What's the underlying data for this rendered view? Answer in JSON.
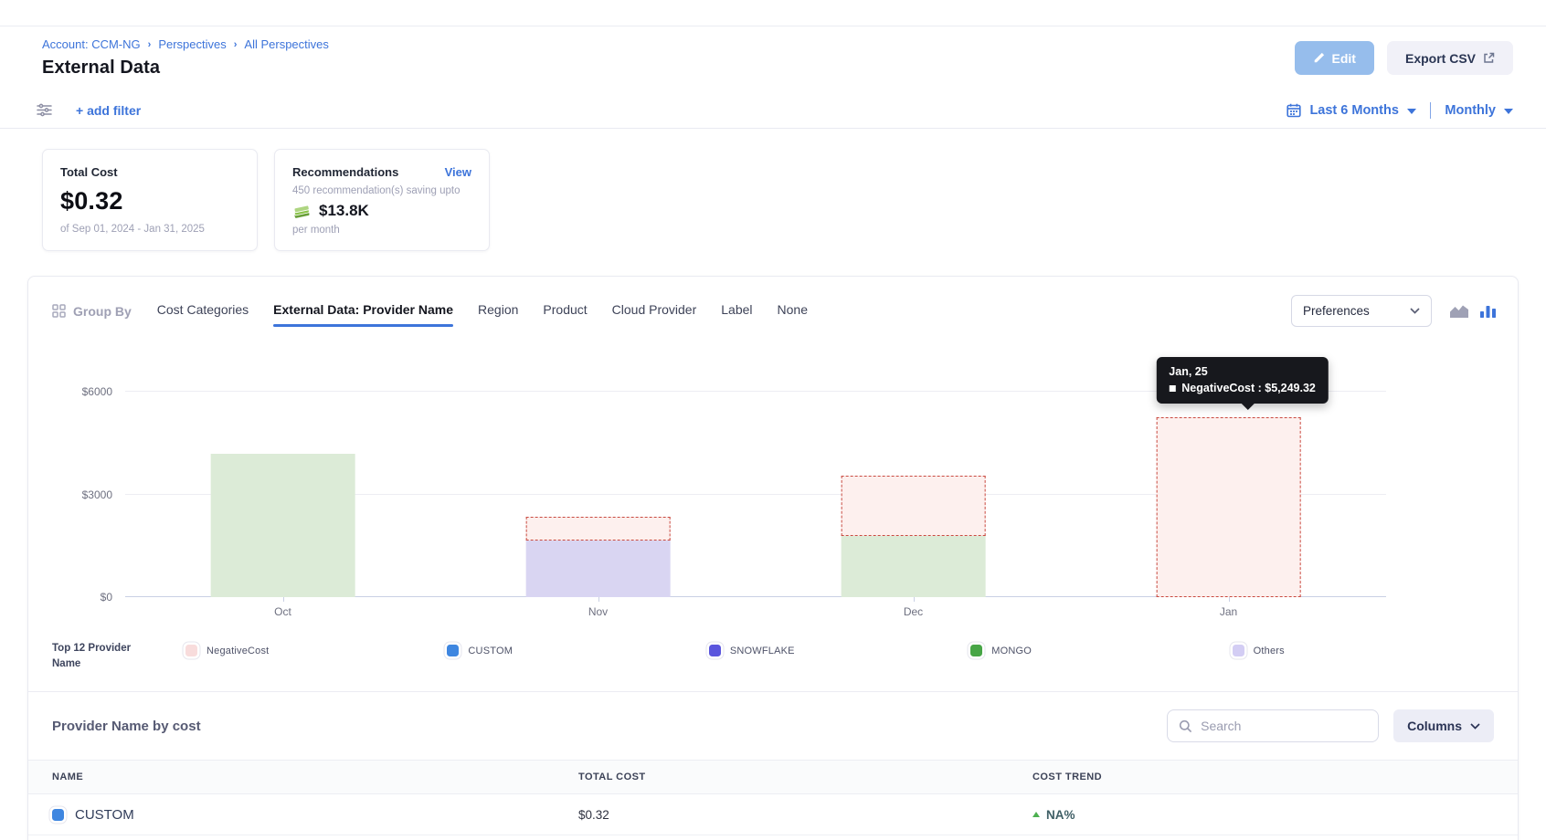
{
  "header": {
    "breadcrumb": [
      "Account: CCM-NG",
      "Perspectives",
      "All Perspectives"
    ],
    "title": "External Data",
    "edit_label": "Edit",
    "export_label": "Export CSV"
  },
  "filter_bar": {
    "add_filter_label": "+ add filter",
    "time_range_label": "Last 6 Months",
    "granularity_label": "Monthly"
  },
  "summary": {
    "total_cost": {
      "title": "Total Cost",
      "value": "$0.32",
      "period": "of Sep 01, 2024 - Jan 31, 2025"
    },
    "recommendations": {
      "title": "Recommendations",
      "view_label": "View",
      "subtitle": "450 recommendation(s) saving upto",
      "savings": "$13.8K",
      "cadence": "per month"
    }
  },
  "group_by": {
    "label": "Group By",
    "tabs": [
      {
        "label": "Cost Categories",
        "active": false
      },
      {
        "label": "External Data: Provider Name",
        "active": true
      },
      {
        "label": "Region",
        "active": false
      },
      {
        "label": "Product",
        "active": false
      },
      {
        "label": "Cloud Provider",
        "active": false
      },
      {
        "label": "Label",
        "active": false
      },
      {
        "label": "None",
        "active": false
      }
    ],
    "preferences_label": "Preferences"
  },
  "chart_data": {
    "type": "bar",
    "stacked": true,
    "title": "",
    "xlabel": "",
    "ylabel": "",
    "grid": true,
    "legend_position": "bottom",
    "categories": [
      "Oct",
      "Nov",
      "Dec",
      "Jan"
    ],
    "series": [
      {
        "name": "Others",
        "color": "#d9d5f2",
        "dashed": false,
        "values": [
          0,
          1650,
          0,
          0
        ]
      },
      {
        "name": "MONGO",
        "color": "#dcebd7",
        "dashed": false,
        "values": [
          4200,
          0,
          1800,
          0
        ]
      },
      {
        "name": "NegativeCost",
        "color": "#fdf0ee",
        "dashed": true,
        "values": [
          0,
          700,
          1750,
          5249.32
        ]
      }
    ],
    "ylim": [
      0,
      6600
    ],
    "y_ticks": [
      {
        "value": 0,
        "label": "$0"
      },
      {
        "value": 3000,
        "label": "$3000"
      },
      {
        "value": 6000,
        "label": "$6000"
      }
    ],
    "tooltip": {
      "category": "Jan",
      "title": "Jan, 25",
      "series": "NegativeCost",
      "value": "$5,249.32"
    }
  },
  "legend": {
    "title": "Top 12 Provider Name",
    "items": [
      {
        "label": "NegativeCost",
        "color": "#f8dcdc"
      },
      {
        "label": "CUSTOM",
        "color": "#3e86e0"
      },
      {
        "label": "SNOWFLAKE",
        "color": "#5a55dd"
      },
      {
        "label": "MONGO",
        "color": "#47a546"
      },
      {
        "label": "Others",
        "color": "#d3cdf4"
      }
    ]
  },
  "table": {
    "title": "Provider Name by cost",
    "search_placeholder": "Search",
    "columns_label": "Columns",
    "headers": [
      "NAME",
      "TOTAL COST",
      "COST TREND"
    ],
    "rows": [
      {
        "name": "CUSTOM",
        "swatch_color": "#3e86e0",
        "total_cost": "$0.32",
        "cost_trend": "NA%",
        "trend_direction": "up"
      }
    ]
  }
}
